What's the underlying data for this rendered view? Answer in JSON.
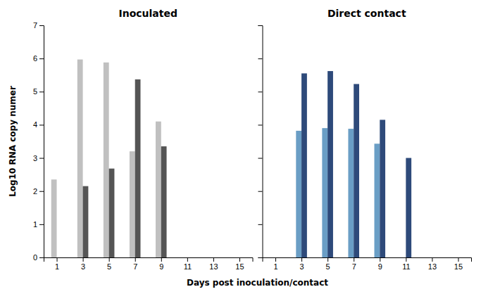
{
  "chart_data": [
    {
      "type": "bar",
      "title": "Inoculated",
      "ylabel": "Log10 RNA copy numer",
      "xlabel": "Days post inoculation/contact",
      "xlim": [
        0,
        16
      ],
      "xticks": [
        1,
        3,
        5,
        7,
        9,
        11,
        13,
        15
      ],
      "ylim": [
        0,
        7
      ],
      "yticks": [
        0,
        1,
        2,
        3,
        4,
        5,
        6,
        7
      ],
      "series": [
        {
          "color": "#C0C0C0",
          "x": [
            1,
            3,
            5,
            7,
            9
          ],
          "values": [
            2.35,
            5.97,
            5.88,
            3.2,
            4.1
          ]
        },
        {
          "color": "#555555",
          "x": [
            3,
            5,
            7,
            9
          ],
          "values": [
            2.15,
            2.68,
            5.37,
            3.35
          ]
        }
      ]
    },
    {
      "type": "bar",
      "title": "Direct contact",
      "xlim": [
        0,
        16
      ],
      "xticks": [
        1,
        3,
        5,
        7,
        9,
        11,
        13,
        15
      ],
      "ylim": [
        0,
        7
      ],
      "yticks": [
        0,
        1,
        2,
        3,
        4,
        5,
        6,
        7
      ],
      "tick_labels": "x",
      "series": [
        {
          "color": "#6A9EC5",
          "x": [
            3,
            5,
            7,
            9
          ],
          "values": [
            3.82,
            3.9,
            3.88,
            3.43
          ]
        },
        {
          "color": "#2E4A7A",
          "x": [
            3,
            5,
            7,
            9,
            11
          ],
          "values": [
            5.55,
            5.62,
            5.23,
            4.15,
            3.0
          ]
        }
      ]
    }
  ]
}
